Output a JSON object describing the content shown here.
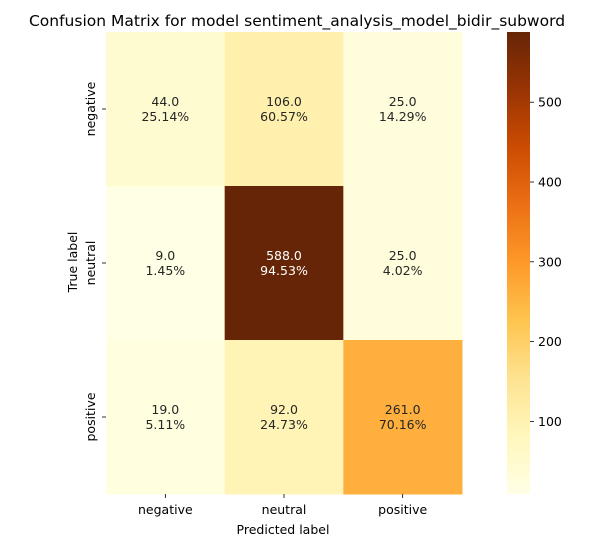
{
  "chart_data": {
    "type": "heatmap",
    "title": "Confusion Matrix for model sentiment_analysis_model_bidir_subword",
    "xlabel": "Predicted label",
    "ylabel": "True label",
    "x_categories": [
      "negative",
      "neutral",
      "positive"
    ],
    "y_categories": [
      "negative",
      "neutral",
      "positive"
    ],
    "values": [
      [
        44.0,
        106.0,
        25.0
      ],
      [
        9.0,
        588.0,
        25.0
      ],
      [
        19.0,
        92.0,
        261.0
      ]
    ],
    "cell_labels": [
      [
        [
          "44.0",
          "25.14%"
        ],
        [
          "106.0",
          "60.57%"
        ],
        [
          "25.0",
          "14.29%"
        ]
      ],
      [
        [
          "9.0",
          "1.45%"
        ],
        [
          "588.0",
          "94.53%"
        ],
        [
          "25.0",
          "4.02%"
        ]
      ],
      [
        [
          "19.0",
          "5.11%"
        ],
        [
          "92.0",
          "24.73%"
        ],
        [
          "261.0",
          "70.16%"
        ]
      ]
    ],
    "colormap": "YlOrBr",
    "colorbar": {
      "range": [
        9,
        588
      ],
      "ticks": [
        100,
        200,
        300,
        400,
        500
      ],
      "tick_labels": [
        "100",
        "200",
        "300",
        "400",
        "500"
      ]
    }
  }
}
